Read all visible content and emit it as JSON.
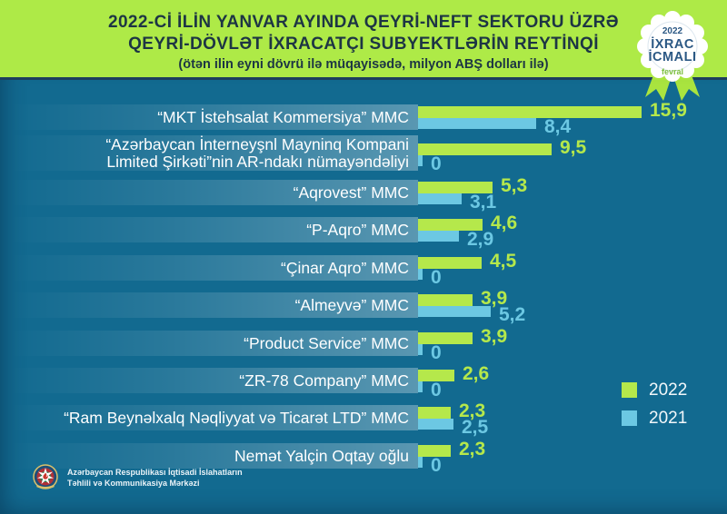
{
  "header": {
    "title_line1": "2022-Cİ İLİN YANVAR AYINDA QEYRİ-NEFT SEKTORU ÜZRƏ",
    "title_line2": "QEYRİ-DÖVLƏT İXRACATÇI SUBYEKTLƏRİN REYTİNQİ",
    "subtitle": "(ötən ilin eyni dövrü ilə müqayisədə, milyon ABŞ dolları ilə)",
    "bg_color": "#aeea47",
    "text_color": "#1d3544"
  },
  "badge": {
    "year": "2022",
    "line1": "İXRAC",
    "line2": "İCMALI",
    "month": "fevral"
  },
  "chart_data": {
    "type": "bar",
    "orientation": "horizontal",
    "title": "2022-ci ilin yanvar ayında qeyri-neft sektoru üzrə qeyri-dövlət ixracatçı subyektlərin reytinqi",
    "unit": "milyon ABŞ dolları",
    "xlim": [
      0,
      16
    ],
    "grid": false,
    "legend_position": "right-bottom",
    "categories": [
      "“MKT İstehsalat Kommersiya” MMC",
      "“Azərbaycan İnterneyşnl Mayninq Kompani Limited Şirkəti”nin AR-ndakı nümayəndəliyi",
      "“Aqrovest” MMC",
      "“P-Aqro” MMC",
      "“Çinar Aqro” MMC",
      "“Almeyvə” MMC",
      "“Product Service” MMC",
      "“ZR-78 Company” MMC",
      "“Ram Beynəlxalq Nəqliyyat və Ticarət LTD” MMC",
      "Nemət Yalçin Oqtay oğlu"
    ],
    "display_lines": [
      [
        "“MKT İstehsalat Kommersiya” MMC"
      ],
      [
        "“Azərbaycan İnterneyşnl Mayninq Kompani",
        "Limited Şirkəti”nin AR-ndakı nümayəndəliyi"
      ],
      [
        "“Aqrovest” MMC"
      ],
      [
        "“P-Aqro” MMC"
      ],
      [
        "“Çinar Aqro” MMC"
      ],
      [
        "“Almeyvə” MMC"
      ],
      [
        "“Product Service” MMC"
      ],
      [
        "“ZR-78 Company” MMC"
      ],
      [
        "“Ram Beynəlxalq Nəqliyyat və Ticarət LTD” MMC"
      ],
      [
        "Nemət Yalçin Oqtay oğlu"
      ]
    ],
    "series": [
      {
        "name": "2022",
        "color": "#b5e84b",
        "values": [
          15.9,
          9.5,
          5.3,
          4.6,
          4.5,
          3.9,
          3.9,
          2.6,
          2.3,
          2.3
        ],
        "labels": [
          "15,9",
          "9,5",
          "5,3",
          "4,6",
          "4,5",
          "3,9",
          "3,9",
          "2,6",
          "2,3",
          "2,3"
        ]
      },
      {
        "name": "2021",
        "color": "#6cc8e3",
        "values": [
          8.4,
          0,
          3.1,
          2.9,
          0,
          5.2,
          0,
          0,
          2.5,
          0
        ],
        "labels": [
          "8,4",
          "0",
          "3,1",
          "2,9",
          "0",
          "5,2",
          "0",
          "0",
          "2,5",
          "0"
        ]
      }
    ]
  },
  "legend": {
    "items": [
      {
        "label": "2022",
        "color": "#b5e84b"
      },
      {
        "label": "2021",
        "color": "#6cc8e3"
      }
    ]
  },
  "footer": {
    "org_line1": "Azərbaycan Respublikası İqtisadi İslahatların",
    "org_line2": "Təhlili və Kommunikasiya Mərkəzi"
  },
  "icons": {
    "badge_rosette": "rosette-seal-icon",
    "footer_emblem": "azerbaijan-emblem-icon"
  }
}
